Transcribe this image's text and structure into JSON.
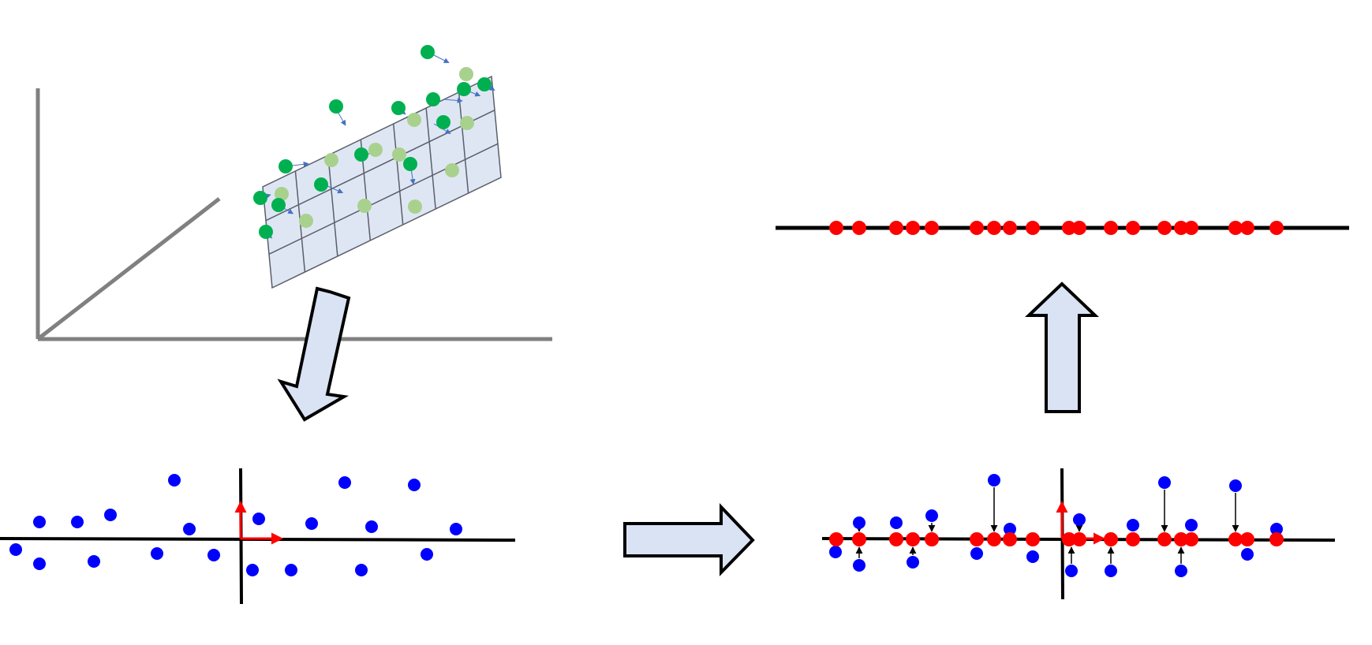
{
  "colors": {
    "axis3d": "#808080",
    "plane_fill": "#dfe6f3",
    "plane_stroke": "#5a5f6a",
    "point_dark_green": "#00b050",
    "point_light_green": "#a9d18e",
    "projection_arrow": "#4472c4",
    "big_arrow_fill": "#dae3f3",
    "big_arrow_stroke": "#000000",
    "point_blue": "#0000ff",
    "point_red": "#ff0000",
    "basis_vector": "#ff0000",
    "axis_line": "#000000"
  },
  "panels": [
    {
      "id": "plane-3d",
      "description_visible": false
    },
    {
      "id": "scatter-2d"
    },
    {
      "id": "projected-2d"
    },
    {
      "id": "line-1d"
    }
  ],
  "big_arrows": [
    "down-left",
    "right",
    "up"
  ]
}
